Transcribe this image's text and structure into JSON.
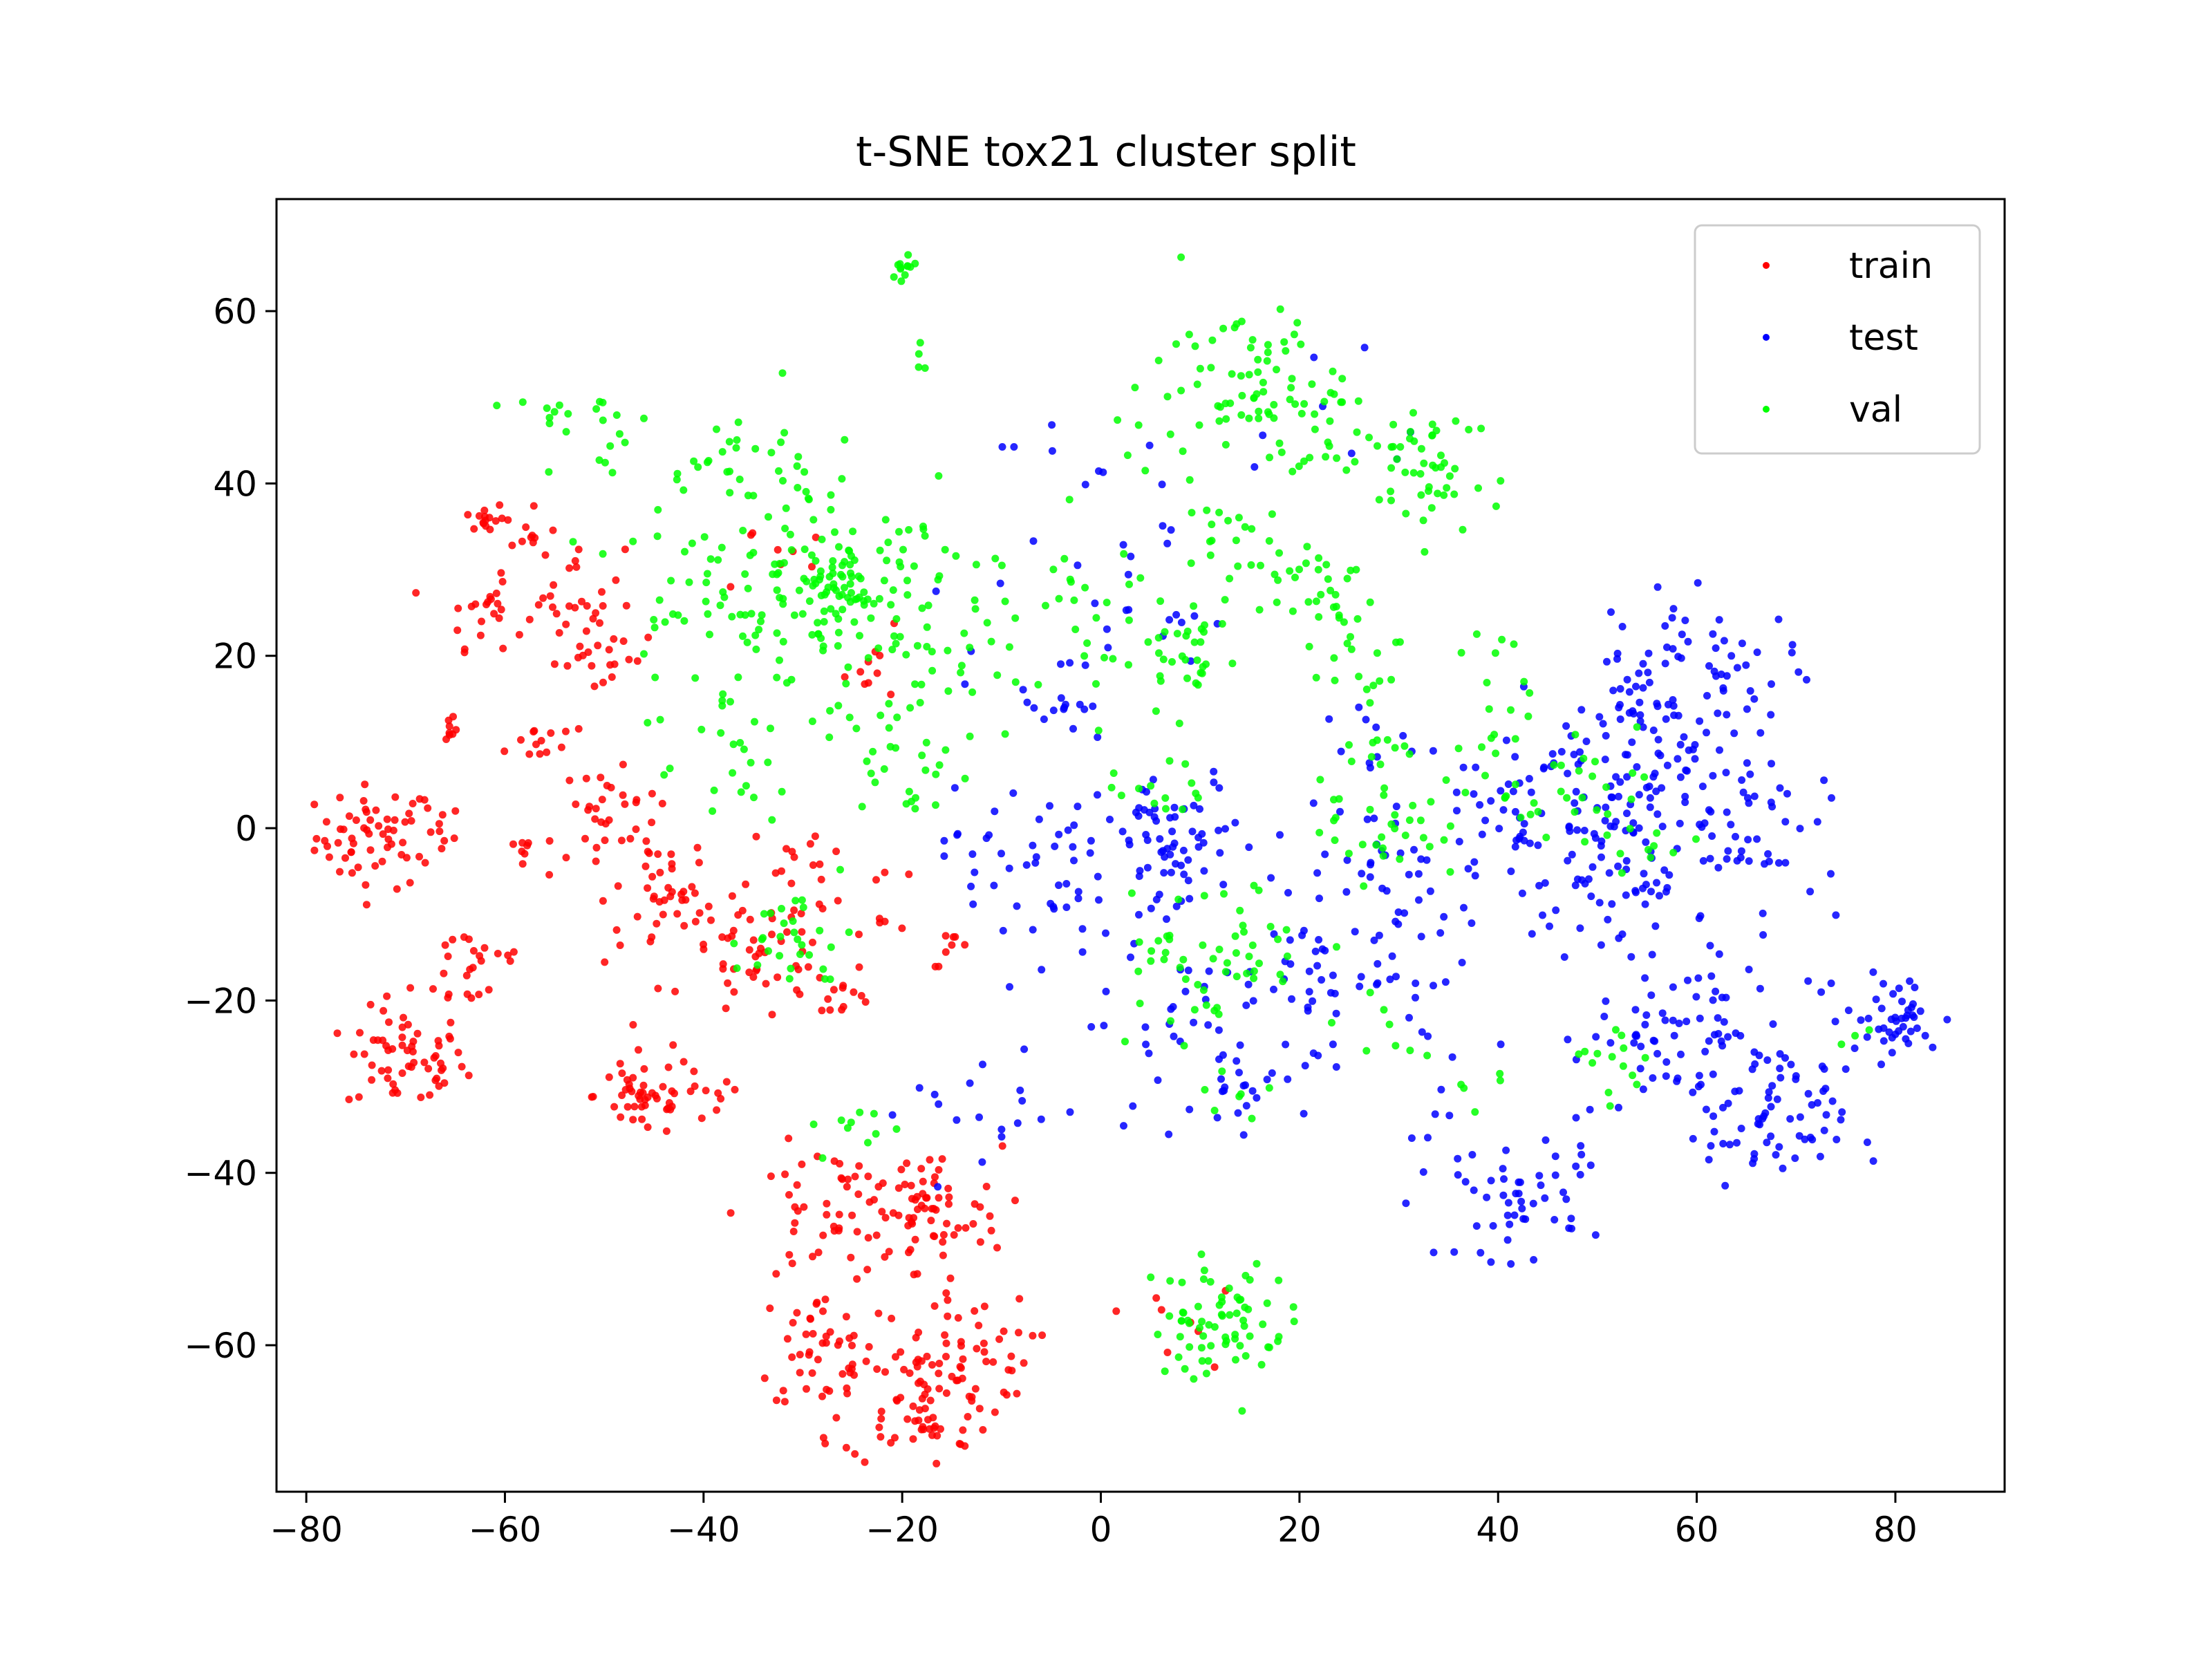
{
  "chart_data": {
    "type": "scatter",
    "title": "t-SNE tox21 cluster split",
    "xlabel": "",
    "ylabel": "",
    "xlim": [
      -83,
      91
    ],
    "ylim": [
      -77,
      73
    ],
    "xticks": [
      -80,
      -60,
      -40,
      -20,
      0,
      20,
      40,
      60,
      80
    ],
    "yticks": [
      -60,
      -40,
      -20,
      0,
      20,
      40,
      60
    ],
    "grid": false,
    "legend": "top-right",
    "series": [
      {
        "name": "train",
        "color": "#ff0000",
        "clusters": [
          {
            "cx": -73,
            "cy": -1,
            "r": 3,
            "n": 55
          },
          {
            "cx": -68,
            "cy": -1,
            "r": 2,
            "n": 12
          },
          {
            "cx": -70,
            "cy": -27,
            "r": 3,
            "n": 60
          },
          {
            "cx": -66,
            "cy": 12,
            "r": 1,
            "n": 8
          },
          {
            "cx": -63,
            "cy": -16,
            "r": 3,
            "n": 25
          },
          {
            "cx": -62,
            "cy": 36,
            "r": 1,
            "n": 14
          },
          {
            "cx": -62,
            "cy": 25,
            "r": 2,
            "n": 22
          },
          {
            "cx": -57,
            "cy": 34,
            "r": 1.5,
            "n": 12
          },
          {
            "cx": -57,
            "cy": 10,
            "r": 1.5,
            "n": 12
          },
          {
            "cx": -58,
            "cy": -3,
            "r": 1.5,
            "n": 10
          },
          {
            "cx": -53,
            "cy": 28,
            "r": 2.5,
            "n": 20
          },
          {
            "cx": -50,
            "cy": 20,
            "r": 2.5,
            "n": 25
          },
          {
            "cx": -50,
            "cy": 3,
            "r": 2,
            "n": 20
          },
          {
            "cx": -46,
            "cy": -3,
            "r": 3,
            "n": 25
          },
          {
            "cx": -44,
            "cy": -10,
            "r": 3,
            "n": 25
          },
          {
            "cx": -46,
            "cy": -31,
            "r": 2.5,
            "n": 45
          },
          {
            "cx": -40,
            "cy": -32,
            "r": 2,
            "n": 10
          },
          {
            "cx": -34,
            "cy": -15,
            "r": 4,
            "n": 55
          },
          {
            "cx": -29,
            "cy": -3,
            "r": 2,
            "n": 12
          },
          {
            "cx": -26,
            "cy": -19,
            "r": 1.5,
            "n": 12
          },
          {
            "cx": -22,
            "cy": -8,
            "r": 2,
            "n": 8
          },
          {
            "cx": -22,
            "cy": 19,
            "r": 2,
            "n": 10
          },
          {
            "cx": -15,
            "cy": -14,
            "r": 1,
            "n": 8
          },
          {
            "cx": -33,
            "cy": 32,
            "r": 3,
            "n": 8
          },
          {
            "cx": -28,
            "cy": -45,
            "r": 4,
            "n": 45
          },
          {
            "cx": -18,
            "cy": -45,
            "r": 4,
            "n": 70
          },
          {
            "cx": -27,
            "cy": -60,
            "r": 4,
            "n": 45
          },
          {
            "cx": -18,
            "cy": -66,
            "r": 4,
            "n": 85
          },
          {
            "cx": -13,
            "cy": -60,
            "r": 3,
            "n": 25
          },
          {
            "cx": 7,
            "cy": -57,
            "r": 3,
            "n": 8
          }
        ]
      },
      {
        "name": "test",
        "color": "#0000ff",
        "clusters": [
          {
            "cx": -8,
            "cy": -3,
            "r": 4,
            "n": 40
          },
          {
            "cx": -5,
            "cy": 15,
            "r": 4,
            "n": 20
          },
          {
            "cx": 8,
            "cy": -2,
            "r": 4,
            "n": 60
          },
          {
            "cx": 2,
            "cy": -12,
            "r": 5,
            "n": 25
          },
          {
            "cx": 10,
            "cy": -25,
            "r": 5,
            "n": 30
          },
          {
            "cx": 14,
            "cy": -30,
            "r": 3,
            "n": 15
          },
          {
            "cx": 20,
            "cy": -18,
            "r": 4,
            "n": 20
          },
          {
            "cx": 26,
            "cy": -12,
            "r": 5,
            "n": 30
          },
          {
            "cx": 30,
            "cy": -5,
            "r": 5,
            "n": 25
          },
          {
            "cx": 32,
            "cy": -22,
            "r": 3,
            "n": 10
          },
          {
            "cx": 42,
            "cy": -44,
            "r": 3,
            "n": 40
          },
          {
            "cx": 46,
            "cy": -40,
            "r": 2,
            "n": 10
          },
          {
            "cx": 35,
            "cy": -35,
            "r": 3,
            "n": 8
          },
          {
            "cx": 44,
            "cy": 2,
            "r": 6,
            "n": 70
          },
          {
            "cx": 55,
            "cy": -5,
            "r": 7,
            "n": 100
          },
          {
            "cx": 55,
            "cy": 8,
            "r": 6,
            "n": 55
          },
          {
            "cx": 62,
            "cy": 18,
            "r": 4,
            "n": 40
          },
          {
            "cx": 55,
            "cy": 20,
            "r": 3,
            "n": 20
          },
          {
            "cx": 66,
            "cy": 2,
            "r": 4,
            "n": 30
          },
          {
            "cx": 62,
            "cy": -25,
            "r": 5,
            "n": 50
          },
          {
            "cx": 52,
            "cy": -25,
            "r": 5,
            "n": 30
          },
          {
            "cx": 68,
            "cy": -35,
            "r": 3.5,
            "n": 55
          },
          {
            "cx": 80,
            "cy": -22,
            "r": 2.5,
            "n": 45
          },
          {
            "cx": 5,
            "cy": 25,
            "r": 3,
            "n": 12
          },
          {
            "cx": 0,
            "cy": 35,
            "r": 5,
            "n": 12
          },
          {
            "cx": -5,
            "cy": 42,
            "r": 3,
            "n": 6
          },
          {
            "cx": 25,
            "cy": 48,
            "r": 6,
            "n": 8
          },
          {
            "cx": -15,
            "cy": -32,
            "r": 4,
            "n": 10
          },
          {
            "cx": -9,
            "cy": -32,
            "r": 3,
            "n": 8
          },
          {
            "cx": 26,
            "cy": 10,
            "r": 3,
            "n": 10
          }
        ]
      },
      {
        "name": "val",
        "color": "#00ff00",
        "clusters": [
          {
            "cx": -27,
            "cy": 28,
            "r": 10,
            "n": 200
          },
          {
            "cx": -27,
            "cy": 28,
            "r": 2,
            "n": 40
          },
          {
            "cx": -20,
            "cy": 65,
            "r": 1,
            "n": 12
          },
          {
            "cx": -18,
            "cy": 55,
            "r": 1,
            "n": 4
          },
          {
            "cx": -39,
            "cy": 44,
            "r": 2,
            "n": 15
          },
          {
            "cx": -54,
            "cy": 48,
            "r": 2,
            "n": 12
          },
          {
            "cx": -50,
            "cy": 44,
            "r": 2,
            "n": 8
          },
          {
            "cx": -37,
            "cy": 8,
            "r": 2,
            "n": 10
          },
          {
            "cx": -20,
            "cy": 9,
            "r": 3,
            "n": 20
          },
          {
            "cx": -18,
            "cy": 3,
            "r": 1,
            "n": 6
          },
          {
            "cx": -31,
            "cy": -13,
            "r": 3,
            "n": 30
          },
          {
            "cx": -24,
            "cy": -35,
            "r": 2,
            "n": 10
          },
          {
            "cx": 16,
            "cy": 52,
            "r": 4,
            "n": 60
          },
          {
            "cx": 20,
            "cy": 44,
            "r": 3,
            "n": 12
          },
          {
            "cx": 10,
            "cy": 47,
            "r": 4,
            "n": 20
          },
          {
            "cx": 29,
            "cy": 42,
            "r": 4,
            "n": 20
          },
          {
            "cx": 33,
            "cy": 45,
            "r": 3,
            "n": 20
          },
          {
            "cx": 33,
            "cy": 38,
            "r": 2,
            "n": 12
          },
          {
            "cx": 12,
            "cy": 33,
            "r": 3,
            "n": 20
          },
          {
            "cx": 22,
            "cy": 28,
            "r": 3,
            "n": 30
          },
          {
            "cx": 8,
            "cy": 20,
            "r": 3,
            "n": 35
          },
          {
            "cx": 25,
            "cy": 20,
            "r": 3,
            "n": 15
          },
          {
            "cx": 40,
            "cy": 19,
            "r": 2,
            "n": 8
          },
          {
            "cx": -2,
            "cy": 24,
            "r": 4,
            "n": 15
          },
          {
            "cx": -10,
            "cy": 20,
            "r": 4,
            "n": 10
          },
          {
            "cx": 6,
            "cy": 5,
            "r": 3,
            "n": 15
          },
          {
            "cx": 28,
            "cy": 0,
            "r": 3,
            "n": 30
          },
          {
            "cx": 28,
            "cy": 10,
            "r": 2,
            "n": 10
          },
          {
            "cx": 42,
            "cy": 5,
            "r": 4,
            "n": 25
          },
          {
            "cx": 52,
            "cy": 5,
            "r": 3,
            "n": 15
          },
          {
            "cx": 10,
            "cy": -15,
            "r": 5,
            "n": 40
          },
          {
            "cx": 16,
            "cy": -13,
            "r": 3,
            "n": 15
          },
          {
            "cx": 12,
            "cy": -57,
            "r": 3.5,
            "n": 70
          },
          {
            "cx": 28,
            "cy": -24,
            "r": 2,
            "n": 8
          },
          {
            "cx": 50,
            "cy": -25,
            "r": 2,
            "n": 8
          },
          {
            "cx": 54,
            "cy": -28,
            "r": 2,
            "n": 6
          },
          {
            "cx": 55,
            "cy": -3,
            "r": 2,
            "n": 8
          },
          {
            "cx": 12,
            "cy": -30,
            "r": 2,
            "n": 6
          },
          {
            "cx": -40,
            "cy": 20,
            "r": 5,
            "n": 12
          },
          {
            "cx": 38,
            "cy": -30,
            "r": 1.5,
            "n": 5
          },
          {
            "cx": 36,
            "cy": 13,
            "r": 2,
            "n": 3
          },
          {
            "cx": 76,
            "cy": -24,
            "r": 1,
            "n": 3
          }
        ]
      }
    ]
  }
}
